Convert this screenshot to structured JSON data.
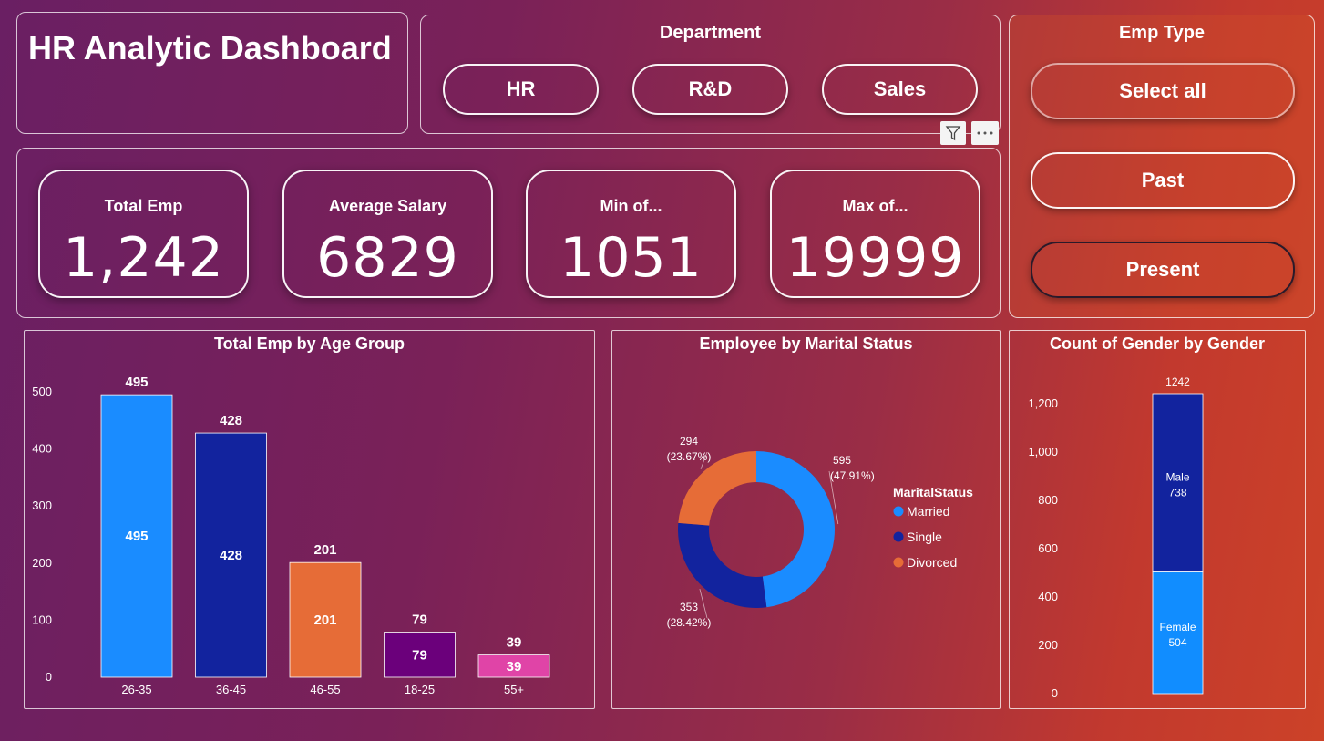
{
  "title": "HR Analytic Dashboard",
  "department": {
    "title": "Department",
    "options": [
      "HR",
      "R&D",
      "Sales"
    ]
  },
  "emp_type": {
    "title": "Emp Type",
    "options": [
      "Select all",
      "Past",
      "Present"
    ]
  },
  "kpis": [
    {
      "label": "Total Emp",
      "value": "1,242"
    },
    {
      "label": "Average Salary",
      "value": "6829"
    },
    {
      "label": "Min of...",
      "value": "1051"
    },
    {
      "label": "Max of...",
      "value": "19999"
    }
  ],
  "visual_header": {
    "filter_icon": "filter-icon",
    "more_icon": "more-options-icon"
  },
  "chart_data": [
    {
      "type": "bar",
      "title": "Total Emp by Age Group",
      "categories": [
        "26-35",
        "36-45",
        "46-55",
        "18-25",
        "55+"
      ],
      "values": [
        495,
        428,
        201,
        79,
        39
      ],
      "colors": [
        "#1a8cff",
        "#12239e",
        "#e66c37",
        "#6b007b",
        "#e044a7"
      ],
      "yticks": [
        "0",
        "100",
        "200",
        "300",
        "400",
        "500"
      ],
      "ylim": [
        0,
        500
      ]
    },
    {
      "type": "pie",
      "title": "Employee by Marital Status",
      "legend_title": "MaritalStatus",
      "categories": [
        "Married",
        "Single",
        "Divorced"
      ],
      "values": [
        595,
        353,
        294
      ],
      "percents": [
        "(47.91%)",
        "(28.42%)",
        "(23.67%)"
      ],
      "colors": [
        "#1a8cff",
        "#12239e",
        "#e66c37"
      ]
    },
    {
      "type": "bar",
      "title": "Count of Gender by Gender",
      "total": "1242",
      "series": [
        {
          "name": "Female",
          "value": 504,
          "color": "#118dff"
        },
        {
          "name": "Male",
          "value": 738,
          "color": "#12239e"
        }
      ],
      "yticks": [
        "0",
        "200",
        "400",
        "600",
        "800",
        "1,000",
        "1,200"
      ],
      "ylim": [
        0,
        1242
      ]
    }
  ]
}
